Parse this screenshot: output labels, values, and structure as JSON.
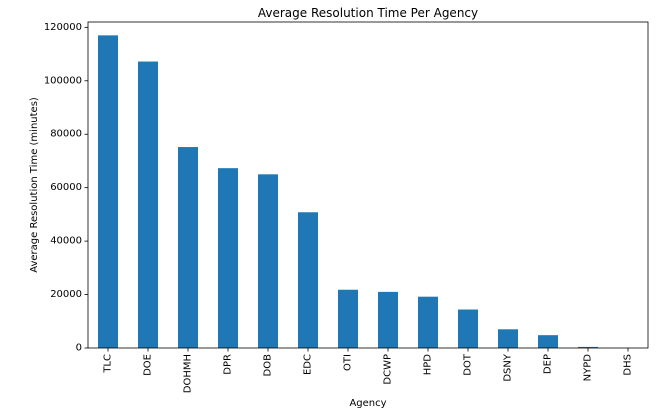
{
  "chart_data": {
    "type": "bar",
    "title": "Average Resolution Time Per Agency",
    "xlabel": "Agency",
    "ylabel": "Average Resolution Time (minutes)",
    "categories": [
      "TLC",
      "DOE",
      "DOHMH",
      "DPR",
      "DOB",
      "EDC",
      "OTI",
      "DCWP",
      "HPD",
      "DOT",
      "DSNY",
      "DEP",
      "NYPD",
      "DHS"
    ],
    "values": [
      117000,
      107200,
      75200,
      67300,
      65000,
      50800,
      21800,
      21000,
      19200,
      14400,
      7000,
      4800,
      400,
      0
    ],
    "ylim": [
      0,
      122000
    ],
    "yticks": [
      0,
      20000,
      40000,
      60000,
      80000,
      100000,
      120000
    ],
    "bar_color": "#1f77b4",
    "grid": false,
    "legend": "none"
  }
}
